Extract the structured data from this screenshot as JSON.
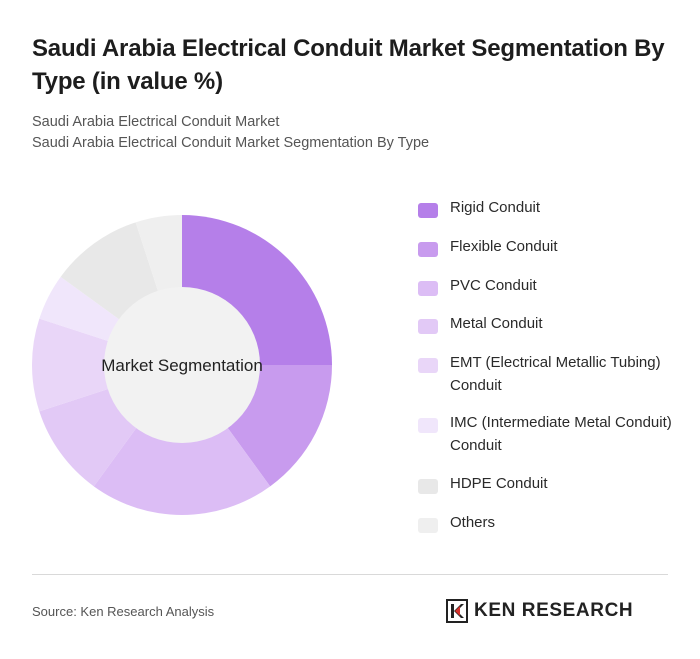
{
  "title": "Saudi Arabia Electrical Conduit Market Segmentation By Type (in value %)",
  "subtitle_line1": "Saudi Arabia Electrical Conduit Market",
  "subtitle_line2": "Saudi Arabia Electrical Conduit Market Segmentation By Type",
  "source": "Source: Ken Research Analysis",
  "logo": {
    "brand": "KEN RESEARCH",
    "icon": "ken-research-k-logo"
  },
  "colors": {
    "rigid": "#b57fe9",
    "flexible": "#c89bee",
    "pvc": "#dcbdf5",
    "metal": "#e2c9f6",
    "emt": "#e9d6f8",
    "imc": "#f0e6fb",
    "hdpe": "#e8e8e8",
    "others": "#efefef",
    "center": "#f2f2f2"
  },
  "chart_data": {
    "type": "pie",
    "center_label": "Market Segmentation",
    "categories": [
      "Rigid Conduit",
      "Flexible Conduit",
      "PVC Conduit",
      "Metal Conduit",
      "EMT (Electrical Metallic Tubing) Conduit",
      "IMC (Intermediate Metal Conduit) Conduit",
      "HDPE Conduit",
      "Others"
    ],
    "values": [
      25,
      15,
      20,
      10,
      10,
      5,
      10,
      5
    ],
    "legend_position": "right"
  }
}
